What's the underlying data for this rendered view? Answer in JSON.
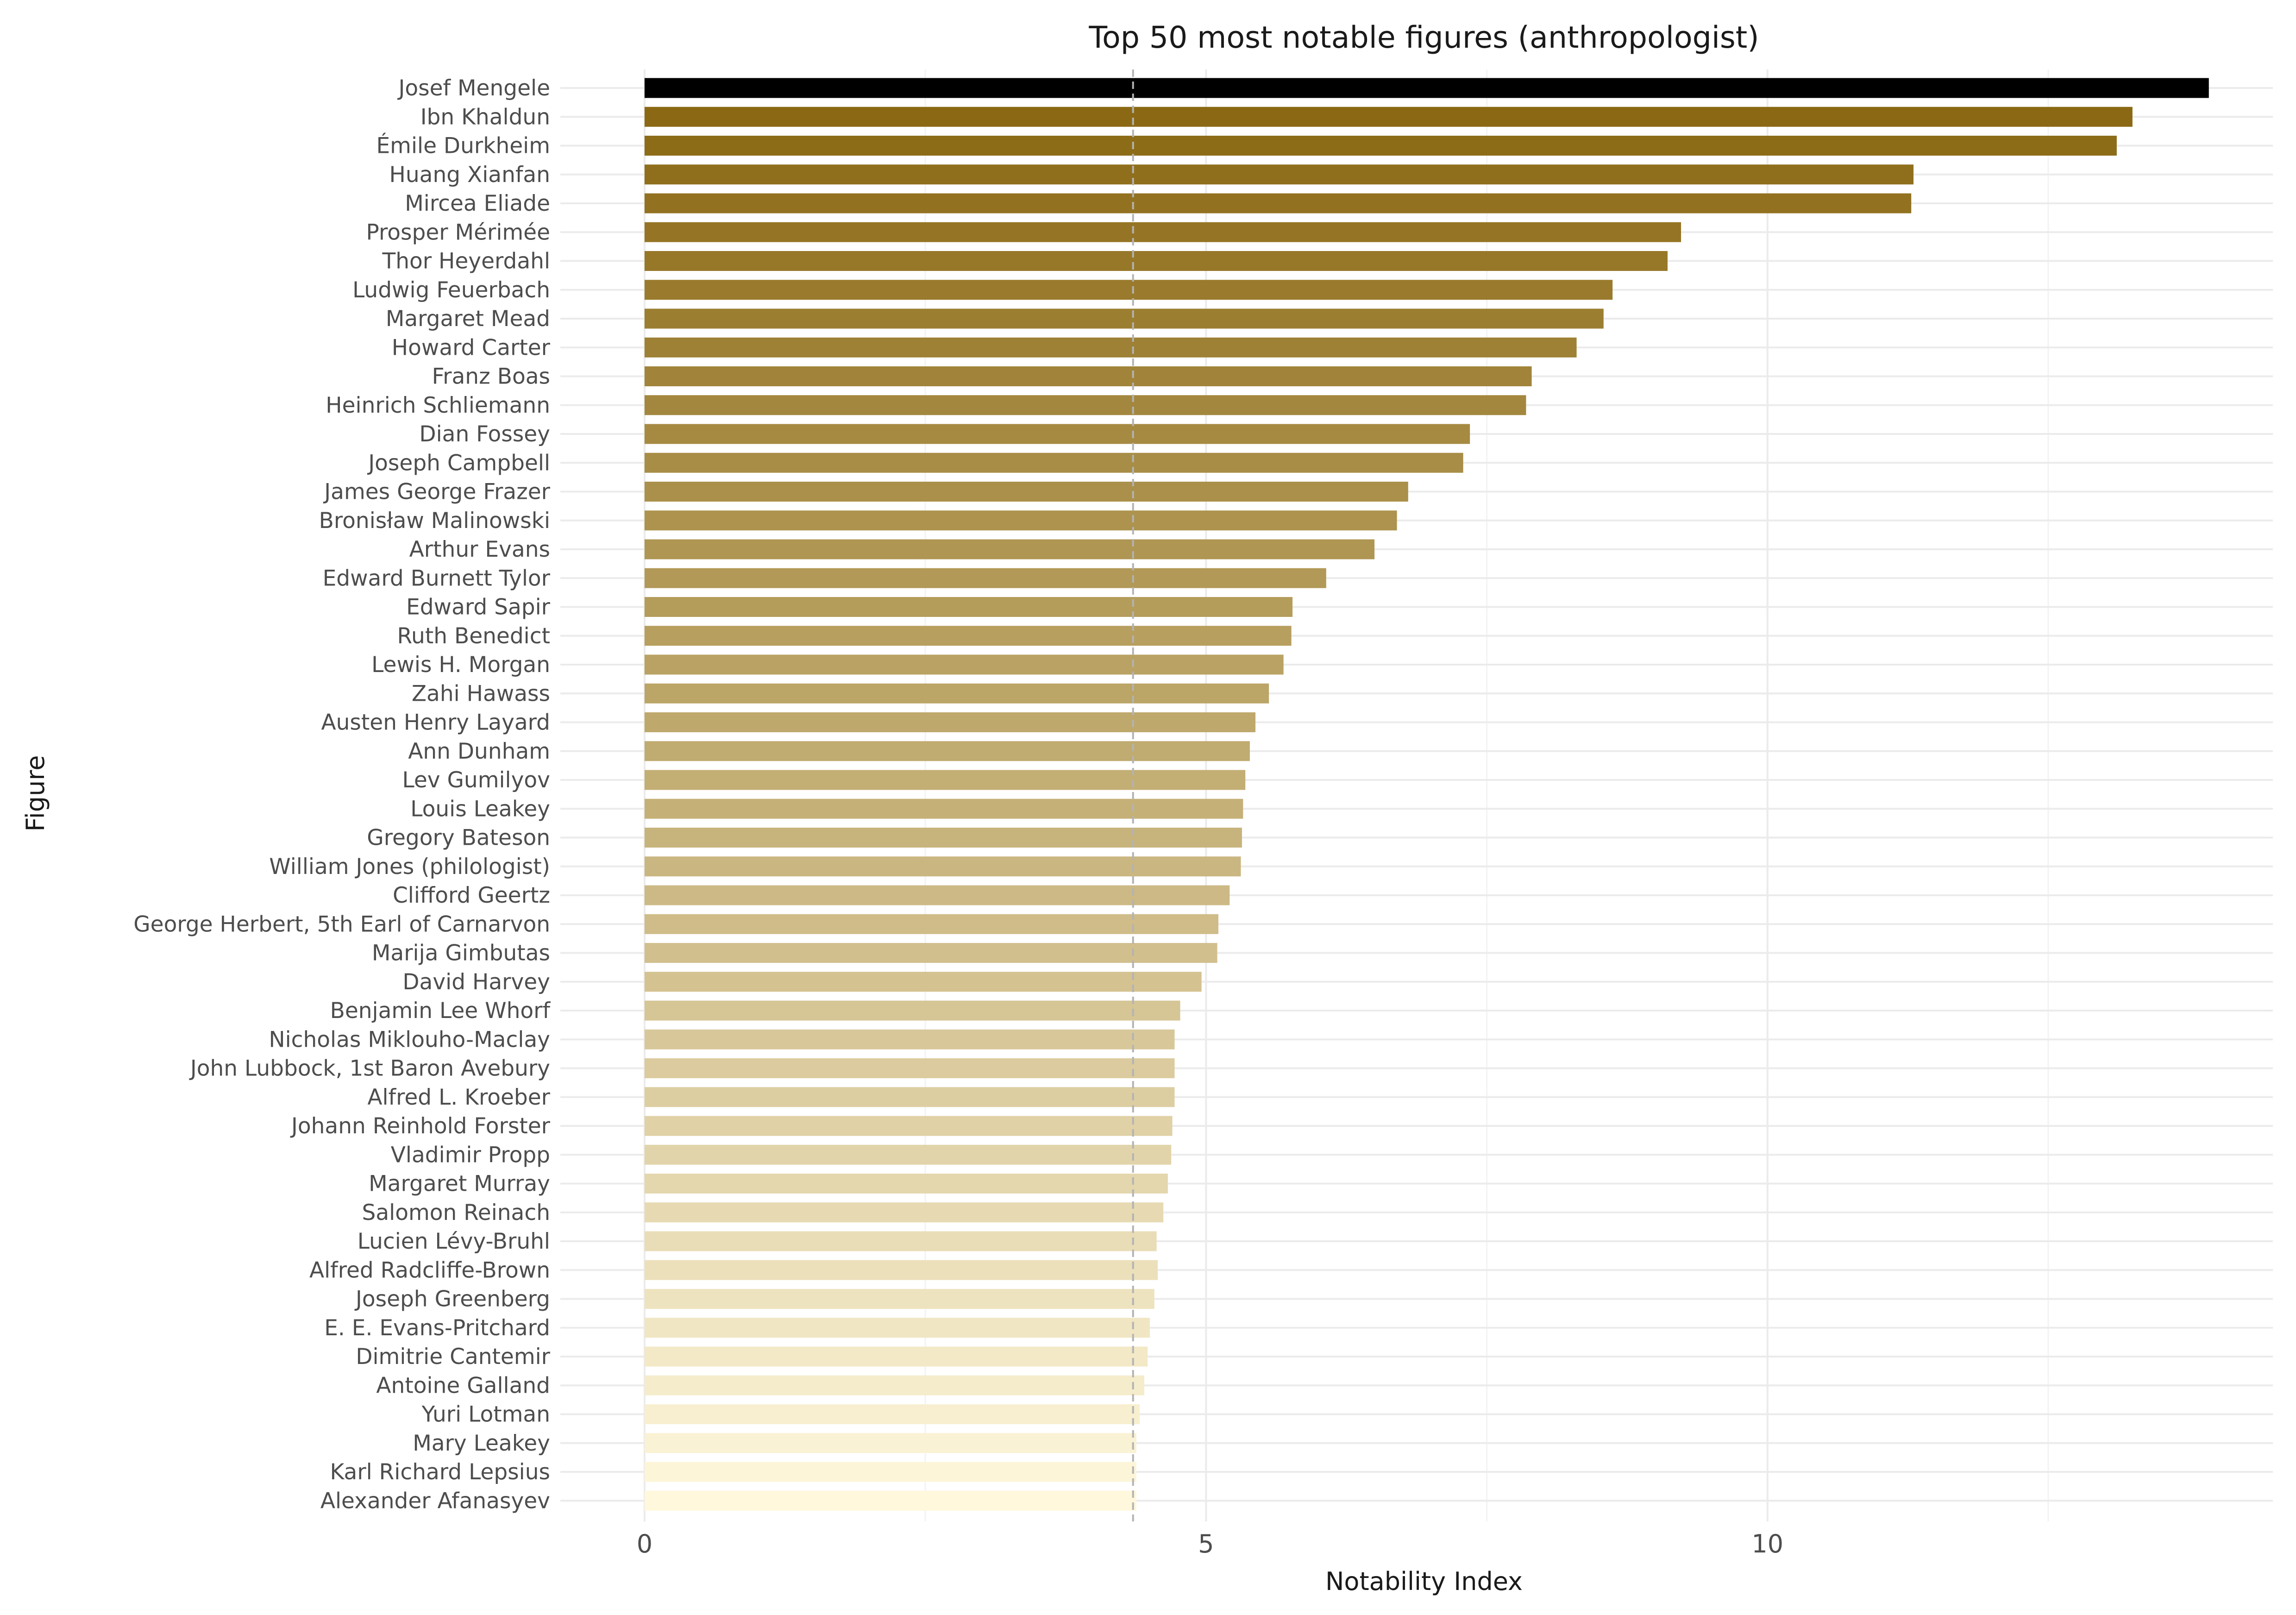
{
  "chart_data": {
    "type": "bar",
    "orientation": "horizontal",
    "title": "Top 50 most notable figures (anthropologist)",
    "xlabel": "Notability Index",
    "ylabel": "Figure",
    "xlim": [
      -0.75,
      14.5
    ],
    "xticks": [
      0,
      5,
      10
    ],
    "xtick_labels": [
      "0",
      "5",
      "10"
    ],
    "grid": true,
    "reference_line": {
      "x": 4.35,
      "style": "dashed",
      "color": "#b3b3b3"
    },
    "color_scale": {
      "high": "#8b6914",
      "low": "#fff8dc",
      "top_bar": "#000000"
    },
    "categories": [
      "Josef Mengele",
      "Ibn Khaldun",
      "Émile Durkheim",
      "Huang Xianfan",
      "Mircea Eliade",
      "Prosper Mérimée",
      "Thor Heyerdahl",
      "Ludwig Feuerbach",
      "Margaret Mead",
      "Howard Carter",
      "Franz Boas",
      "Heinrich Schliemann",
      "Dian Fossey",
      "Joseph Campbell",
      "James George Frazer",
      "Bronisław Malinowski",
      "Arthur Evans",
      "Edward Burnett Tylor",
      "Edward Sapir",
      "Ruth Benedict",
      "Lewis H. Morgan",
      "Zahi Hawass",
      "Austen Henry Layard",
      "Ann Dunham",
      "Lev Gumilyov",
      "Louis Leakey",
      "Gregory Bateson",
      "William Jones (philologist)",
      "Clifford Geertz",
      "George Herbert, 5th Earl of Carnarvon",
      "Marija Gimbutas",
      "David Harvey",
      "Benjamin Lee Whorf",
      "Nicholas Miklouho-Maclay",
      "John Lubbock, 1st Baron Avebury",
      "Alfred L. Kroeber",
      "Johann Reinhold Forster",
      "Vladimir Propp",
      "Margaret Murray",
      "Salomon Reinach",
      "Lucien Lévy-Bruhl",
      "Alfred Radcliffe-Brown",
      "Joseph Greenberg",
      "E. E. Evans-Pritchard",
      "Dimitrie Cantemir",
      "Antoine Galland",
      "Yuri Lotman",
      "Mary Leakey",
      "Karl Richard Lepsius",
      "Alexander Afanasyev"
    ],
    "values": [
      13.93,
      13.25,
      13.11,
      11.3,
      11.28,
      9.23,
      9.11,
      8.62,
      8.54,
      8.3,
      7.9,
      7.85,
      7.35,
      7.29,
      6.8,
      6.7,
      6.5,
      6.07,
      5.77,
      5.76,
      5.69,
      5.56,
      5.44,
      5.39,
      5.35,
      5.33,
      5.32,
      5.31,
      5.21,
      5.11,
      5.1,
      4.96,
      4.77,
      4.72,
      4.72,
      4.72,
      4.7,
      4.69,
      4.66,
      4.62,
      4.56,
      4.57,
      4.54,
      4.5,
      4.48,
      4.45,
      4.41,
      4.38,
      4.38,
      4.38
    ]
  }
}
